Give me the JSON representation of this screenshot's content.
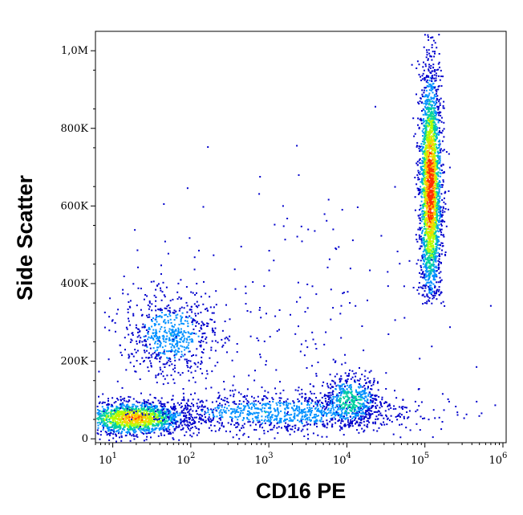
{
  "chart_data": {
    "type": "scatter",
    "title": "",
    "xlabel": "CD16 PE",
    "ylabel": "Side Scatter",
    "x_scale": "log",
    "x_range": [
      6,
      1100000
    ],
    "y_range": [
      -10000,
      1050000
    ],
    "x_ticks": [
      {
        "value": 10,
        "base": "10",
        "exp": "1"
      },
      {
        "value": 100,
        "base": "10",
        "exp": "2"
      },
      {
        "value": 1000,
        "base": "10",
        "exp": "3"
      },
      {
        "value": 10000,
        "base": "10",
        "exp": "4"
      },
      {
        "value": 100000,
        "base": "10",
        "exp": "5"
      },
      {
        "value": 1000000,
        "base": "10",
        "exp": "6"
      }
    ],
    "y_ticks": [
      {
        "value": 0,
        "label": "0"
      },
      {
        "value": 200000,
        "label": "200K"
      },
      {
        "value": 400000,
        "label": "400K"
      },
      {
        "value": 600000,
        "label": "600K"
      },
      {
        "value": 800000,
        "label": "800K"
      },
      {
        "value": 1000000,
        "label": "1,0M"
      }
    ],
    "colormap": [
      "#0000cc",
      "#0090ff",
      "#00d0a0",
      "#b0ff00",
      "#ffd000",
      "#ff3000"
    ],
    "populations": [
      {
        "name": "CD16 high",
        "x_center": 115000,
        "x_log_sd": 0.07,
        "y_center": 650000,
        "y_sd": 150000,
        "y_min": 350000,
        "y_max": 1050000,
        "count": 2600,
        "density": 1.0
      },
      {
        "name": "CD16 negative low SSC",
        "x_center": 18,
        "x_log_sd": 0.35,
        "y_center": 55000,
        "y_sd": 22000,
        "y_min": -5000,
        "y_max": 130000,
        "count": 1500,
        "density": 0.8
      },
      {
        "name": "CD16 low SSC tail",
        "x_center": 1500,
        "x_log_sd": 0.9,
        "y_center": 70000,
        "y_sd": 25000,
        "y_min": 0,
        "y_max": 160000,
        "count": 1100,
        "density": 0.3
      },
      {
        "name": "CD16 dim",
        "x_center": 11000,
        "x_log_sd": 0.18,
        "y_center": 100000,
        "y_sd": 35000,
        "y_min": 20000,
        "y_max": 250000,
        "count": 500,
        "density": 0.45
      },
      {
        "name": "CD16 negative mid SSC",
        "x_center": 55,
        "x_log_sd": 0.3,
        "y_center": 270000,
        "y_sd": 55000,
        "y_min": 120000,
        "y_max": 420000,
        "count": 650,
        "density": 0.3
      },
      {
        "name": "sparse events",
        "x_center": 1000,
        "x_log_sd": 1.2,
        "y_center": 300000,
        "y_sd": 200000,
        "y_min": 0,
        "y_max": 950000,
        "count": 260,
        "density": 0.0
      }
    ]
  }
}
